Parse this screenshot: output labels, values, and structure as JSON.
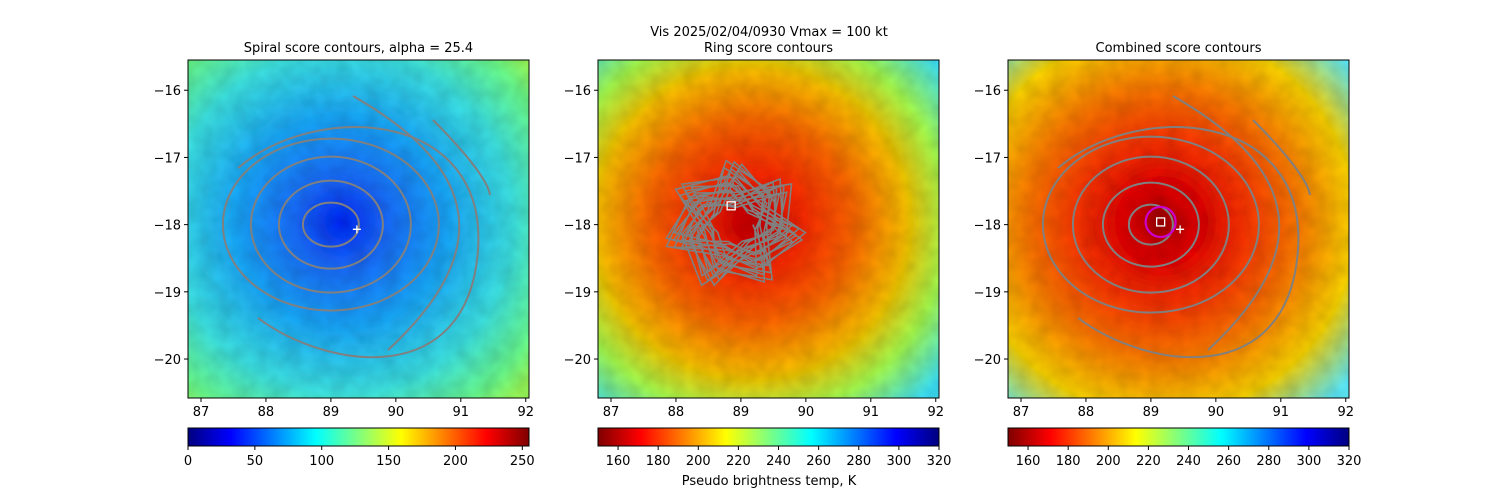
{
  "suptitle": "Vis  2025/02/04/0930    Vmax = 100 kt",
  "colorbar_label": "Pseudo brightness temp, K",
  "chart_data": [
    {
      "type": "heatmap",
      "title": "Spiral score contours, alpha = 25.4",
      "xlim": [
        86.8,
        92.05
      ],
      "ylim": [
        -20.58,
        -15.55
      ],
      "x_ticks": [
        87,
        88,
        89,
        90,
        91,
        92
      ],
      "y_ticks": [
        -16,
        -17,
        -18,
        -19,
        -20
      ],
      "colormap": "jet",
      "colorbar_ticks": [
        0,
        50,
        100,
        150,
        200,
        250
      ],
      "colorbar_range": [
        0,
        255
      ],
      "contour_color": "#808080",
      "markers": [
        {
          "kind": "plus",
          "x": 89.4,
          "y": -18.07,
          "color": "#ffffff"
        }
      ]
    },
    {
      "type": "heatmap",
      "title": "Ring score contours",
      "xlim": [
        86.8,
        92.05
      ],
      "ylim": [
        -20.58,
        -15.55
      ],
      "x_ticks": [
        87,
        88,
        89,
        90,
        91,
        92
      ],
      "y_ticks": [
        -16,
        -17,
        -18,
        -19,
        -20
      ],
      "colormap": "jet_r",
      "colorbar_ticks": [
        160,
        180,
        200,
        220,
        240,
        260,
        280,
        300,
        320
      ],
      "colorbar_range": [
        150,
        320
      ],
      "contour_color": "#808080",
      "markers": [
        {
          "kind": "square",
          "x": 88.85,
          "y": -17.72,
          "color": "#ffffff"
        }
      ]
    },
    {
      "type": "heatmap",
      "title": "Combined score contours",
      "xlim": [
        86.8,
        92.05
      ],
      "ylim": [
        -20.58,
        -15.55
      ],
      "x_ticks": [
        87,
        88,
        89,
        90,
        91,
        92
      ],
      "y_ticks": [
        -16,
        -17,
        -18,
        -19,
        -20
      ],
      "colormap": "jet_r",
      "colorbar_ticks": [
        160,
        180,
        200,
        220,
        240,
        260,
        280,
        300,
        320
      ],
      "colorbar_range": [
        150,
        320
      ],
      "contour_color": "#808080",
      "markers": [
        {
          "kind": "square",
          "x": 89.15,
          "y": -17.96,
          "color": "#ffffff"
        },
        {
          "kind": "circle",
          "x": 89.15,
          "y": -17.96,
          "color": "#cc00cc"
        },
        {
          "kind": "plus",
          "x": 89.45,
          "y": -18.07,
          "color": "#ffffff"
        }
      ]
    }
  ]
}
